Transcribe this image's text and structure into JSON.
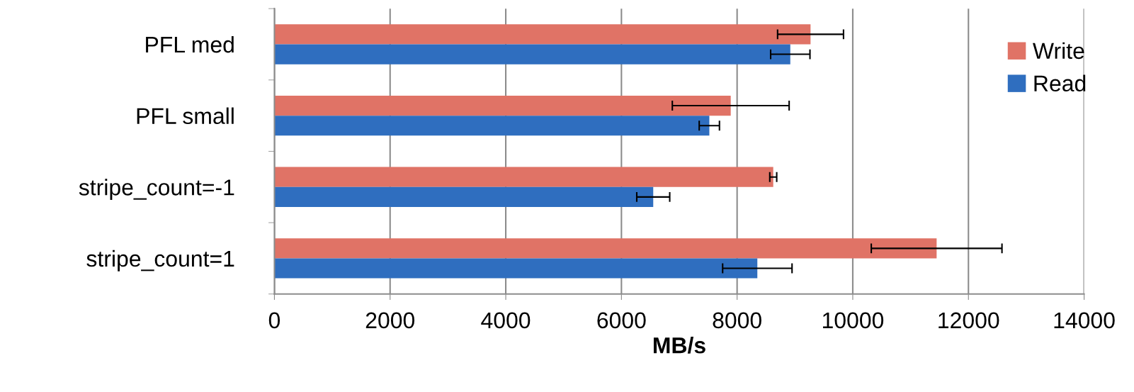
{
  "chart_data": {
    "type": "bar",
    "orientation": "horizontal",
    "xlabel": "MB/s",
    "categories": [
      "PFL med",
      "PFL small",
      "stripe_count=-1",
      "stripe_count=1"
    ],
    "series": [
      {
        "name": "Write",
        "color": "#e07366",
        "values": [
          9270,
          7890,
          8625,
          11450
        ],
        "errors": [
          570,
          1010,
          60,
          1130
        ]
      },
      {
        "name": "Read",
        "color": "#2f6ebf",
        "values": [
          8920,
          7520,
          6550,
          8350
        ],
        "errors": [
          340,
          175,
          285,
          600
        ]
      }
    ],
    "xlim": [
      0,
      14000
    ],
    "xticks": [
      0,
      2000,
      4000,
      6000,
      8000,
      10000,
      12000,
      14000
    ],
    "grid": "x",
    "legend": "top right"
  }
}
